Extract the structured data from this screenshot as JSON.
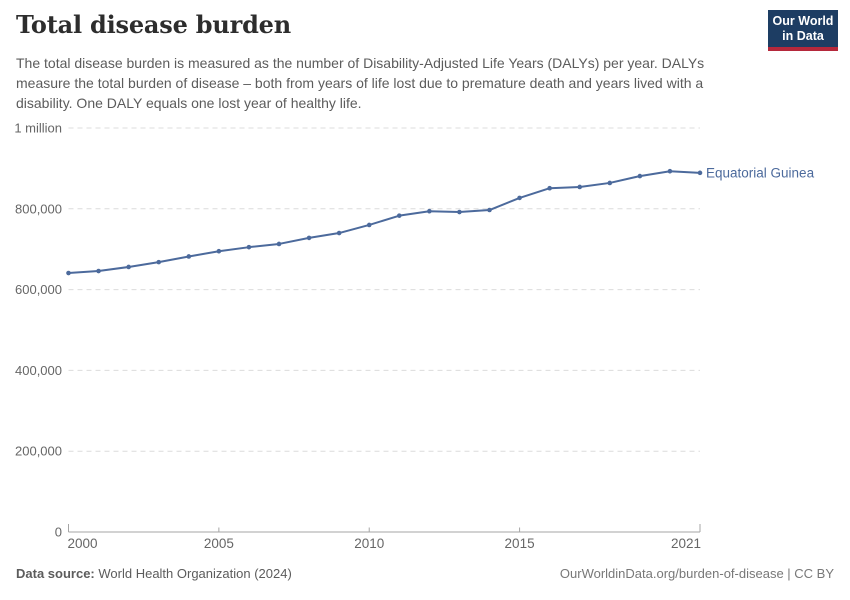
{
  "header": {
    "title": "Total disease burden",
    "subtitle": "The total disease burden is measured as the number of Disability-Adjusted Life Years (DALYs) per year. DALYs measure the total burden of disease – both from years of life lost due to premature death and years lived with a disability. One DALY equals one lost year of healthy life.",
    "logo": {
      "line1": "Our World",
      "line2": "in Data",
      "bg_color": "#1d3d63",
      "accent_color": "#b5283b"
    }
  },
  "chart_data": {
    "type": "line",
    "title": "Total disease burden",
    "entity_label": "Equatorial Guinea",
    "x": [
      2000,
      2001,
      2002,
      2003,
      2004,
      2005,
      2006,
      2007,
      2008,
      2009,
      2010,
      2011,
      2012,
      2013,
      2014,
      2015,
      2016,
      2017,
      2018,
      2019,
      2020,
      2021
    ],
    "series": [
      {
        "name": "Equatorial Guinea",
        "values": [
          641000,
          646000,
          656000,
          668000,
          682000,
          695000,
          705000,
          713000,
          728000,
          740000,
          760000,
          783000,
          794000,
          792000,
          797000,
          827000,
          851000,
          854000,
          864000,
          881000,
          893000,
          889000
        ]
      }
    ],
    "xlabel": "",
    "ylabel": "",
    "ylim": [
      0,
      1000000
    ],
    "yticks": [
      {
        "value": 0,
        "label": "0"
      },
      {
        "value": 200000,
        "label": "200,000"
      },
      {
        "value": 400000,
        "label": "400,000"
      },
      {
        "value": 600000,
        "label": "600,000"
      },
      {
        "value": 800000,
        "label": "800,000"
      },
      {
        "value": 1000000,
        "label": "1 million"
      }
    ],
    "xticks": [
      {
        "value": 2000,
        "label": "2000"
      },
      {
        "value": 2005,
        "label": "2005"
      },
      {
        "value": 2010,
        "label": "2010"
      },
      {
        "value": 2015,
        "label": "2015"
      },
      {
        "value": 2021,
        "label": "2021"
      }
    ],
    "grid": true,
    "legend_position": "end-of-line",
    "colors": {
      "line": "#4C6A9C",
      "entity_label": "#4C6A9C",
      "grid": "#dcdcdc",
      "axis": "#a5a5a5",
      "tick_text": "#666666"
    }
  },
  "footer": {
    "data_source_label": "Data source:",
    "data_source_value": "World Health Organization (2024)",
    "credit": "OurWorldinData.org/burden-of-disease | CC BY"
  }
}
